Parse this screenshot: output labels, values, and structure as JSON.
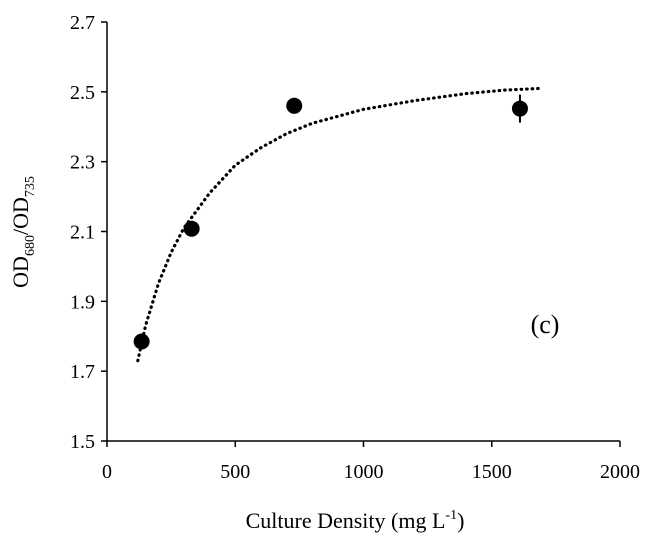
{
  "chart_data": {
    "type": "scatter",
    "title": "",
    "xlabel": {
      "text": "Culture Density (mg L",
      "sup": "-1",
      "tail": ")"
    },
    "ylabel": {
      "main1": "OD",
      "sub1": "680",
      "sep": "/OD",
      "sub2": "735"
    },
    "xlim": [
      0,
      2000
    ],
    "ylim": [
      1.5,
      2.7
    ],
    "xticks": [
      0,
      500,
      1000,
      1500,
      2000
    ],
    "yticks": [
      1.5,
      1.7,
      1.9,
      2.1,
      2.3,
      2.5,
      2.7
    ],
    "ytick_labels": [
      "1.5",
      "1.7",
      "1.9",
      "2.1",
      "2.3",
      "2.5",
      "2.7"
    ],
    "grid": false,
    "series": [
      {
        "points": [
          {
            "x": 135,
            "y": 1.785,
            "err": 0.02
          },
          {
            "x": 330,
            "y": 2.108,
            "err": 0.015
          },
          {
            "x": 730,
            "y": 2.46,
            "err": 0.02
          },
          {
            "x": 1610,
            "y": 2.452,
            "err": 0.04
          }
        ],
        "color": "#000000"
      }
    ],
    "trendline": {
      "style": "dotted",
      "x_range": [
        120,
        1700
      ],
      "points": [
        {
          "x": 120,
          "y": 1.73
        },
        {
          "x": 150,
          "y": 1.83
        },
        {
          "x": 200,
          "y": 1.95
        },
        {
          "x": 250,
          "y": 2.04
        },
        {
          "x": 300,
          "y": 2.11
        },
        {
          "x": 400,
          "y": 2.21
        },
        {
          "x": 500,
          "y": 2.29
        },
        {
          "x": 600,
          "y": 2.34
        },
        {
          "x": 700,
          "y": 2.38
        },
        {
          "x": 800,
          "y": 2.41
        },
        {
          "x": 900,
          "y": 2.43
        },
        {
          "x": 1000,
          "y": 2.45
        },
        {
          "x": 1200,
          "y": 2.475
        },
        {
          "x": 1400,
          "y": 2.495
        },
        {
          "x": 1550,
          "y": 2.505
        },
        {
          "x": 1700,
          "y": 2.51
        }
      ]
    },
    "annotation": "(c)"
  }
}
